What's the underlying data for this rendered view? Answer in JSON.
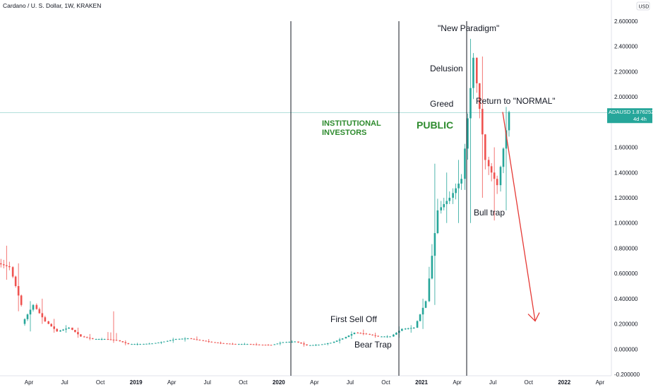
{
  "header": {
    "symbol_title": "Cardano / U. S. Dollar, 1W, KRAKEN",
    "currency_label": "USD"
  },
  "price_tag": {
    "symbol": "ADAUSD",
    "price": "1.876252",
    "countdown": "4d 4h",
    "color": "#26a69a"
  },
  "colors": {
    "up": "#26a69a",
    "down": "#ef5350",
    "annotation_green": "#2e8b2e",
    "arrow": "#e53935"
  },
  "annotations": {
    "new_paradigm": "\"New Paradigm\"",
    "delusion": "Delusion",
    "greed": "Greed",
    "return_normal": "Return to \"NORMAL\"",
    "institutional_line1": "INSTITUTIONAL",
    "institutional_line2": "INVESTORS",
    "public": "PUBLIC",
    "bull_trap": "Bull trap",
    "first_sell_off": "First Sell Off",
    "bear_trap": "Bear Trap"
  },
  "chart_data": {
    "type": "candlestick",
    "title": "Cardano / U. S. Dollar, 1W, KRAKEN",
    "y_axis": {
      "ticks": [
        "2.600000",
        "2.400000",
        "2.200000",
        "2.000000",
        "1.600000",
        "1.400000",
        "1.200000",
        "1.000000",
        "0.800000",
        "0.600000",
        "0.400000",
        "0.200000",
        "0.000000",
        "-0.200000"
      ],
      "tick_values": [
        2.6,
        2.4,
        2.2,
        2.0,
        1.6,
        1.4,
        1.2,
        1.0,
        0.8,
        0.6,
        0.4,
        0.2,
        0.0,
        -0.2
      ],
      "range": [
        -0.2,
        2.6
      ]
    },
    "x_axis": {
      "labels": [
        {
          "text": "Apr",
          "date": "2018-04",
          "year": false
        },
        {
          "text": "Jul",
          "date": "2018-07",
          "year": false
        },
        {
          "text": "Oct",
          "date": "2018-10",
          "year": false
        },
        {
          "text": "2019",
          "date": "2019-01",
          "year": true
        },
        {
          "text": "Apr",
          "date": "2019-04",
          "year": false
        },
        {
          "text": "Jul",
          "date": "2019-07",
          "year": false
        },
        {
          "text": "Oct",
          "date": "2019-10",
          "year": false
        },
        {
          "text": "2020",
          "date": "2020-01",
          "year": true
        },
        {
          "text": "Apr",
          "date": "2020-04",
          "year": false
        },
        {
          "text": "Jul",
          "date": "2020-07",
          "year": false
        },
        {
          "text": "Oct",
          "date": "2020-10",
          "year": false
        },
        {
          "text": "2021",
          "date": "2021-01",
          "year": true
        },
        {
          "text": "Apr",
          "date": "2021-04",
          "year": false
        },
        {
          "text": "Jul",
          "date": "2021-07",
          "year": false
        },
        {
          "text": "Oct",
          "date": "2021-10",
          "year": false
        },
        {
          "text": "2022",
          "date": "2022-01",
          "year": true
        },
        {
          "text": "Apr",
          "date": "2022-04",
          "year": false
        }
      ]
    },
    "current_price": 1.876252,
    "vertical_markers": [
      "2020-02",
      "2020-12",
      "2021-05"
    ],
    "projection": {
      "from_date": "2021-08",
      "from_value": 1.88,
      "to_date": "2021-11",
      "to_value": 0.2
    },
    "ohlc": [
      {
        "date": "2018-02",
        "open": 0.68,
        "high": 0.82,
        "low": 0.55,
        "close": 0.65
      },
      {
        "date": "2018-03",
        "open": 0.65,
        "high": 0.68,
        "low": 0.3,
        "close": 0.35
      },
      {
        "date": "2018-04",
        "open": 0.2,
        "high": 0.38,
        "low": 0.14,
        "close": 0.35
      },
      {
        "date": "2018-05",
        "open": 0.35,
        "high": 0.4,
        "low": 0.2,
        "close": 0.22
      },
      {
        "date": "2018-06",
        "open": 0.22,
        "high": 0.24,
        "low": 0.13,
        "close": 0.14
      },
      {
        "date": "2018-07",
        "open": 0.14,
        "high": 0.19,
        "low": 0.13,
        "close": 0.17
      },
      {
        "date": "2018-08",
        "open": 0.17,
        "high": 0.17,
        "low": 0.09,
        "close": 0.1
      },
      {
        "date": "2018-09",
        "open": 0.1,
        "high": 0.12,
        "low": 0.07,
        "close": 0.08
      },
      {
        "date": "2018-10",
        "open": 0.08,
        "high": 0.09,
        "low": 0.07,
        "close": 0.08
      },
      {
        "date": "2018-11",
        "open": 0.08,
        "high": 0.3,
        "low": 0.05,
        "close": 0.07
      },
      {
        "date": "2018-12",
        "open": 0.07,
        "high": 0.07,
        "low": 0.03,
        "close": 0.04
      },
      {
        "date": "2019-01",
        "open": 0.04,
        "high": 0.05,
        "low": 0.03,
        "close": 0.04
      },
      {
        "date": "2019-02",
        "open": 0.04,
        "high": 0.05,
        "low": 0.04,
        "close": 0.045
      },
      {
        "date": "2019-03",
        "open": 0.045,
        "high": 0.06,
        "low": 0.04,
        "close": 0.06
      },
      {
        "date": "2019-04",
        "open": 0.06,
        "high": 0.09,
        "low": 0.05,
        "close": 0.08
      },
      {
        "date": "2019-05",
        "open": 0.08,
        "high": 0.095,
        "low": 0.06,
        "close": 0.085
      },
      {
        "date": "2019-06",
        "open": 0.085,
        "high": 0.1,
        "low": 0.07,
        "close": 0.07
      },
      {
        "date": "2019-07",
        "open": 0.07,
        "high": 0.08,
        "low": 0.05,
        "close": 0.055
      },
      {
        "date": "2019-08",
        "open": 0.055,
        "high": 0.06,
        "low": 0.04,
        "close": 0.045
      },
      {
        "date": "2019-09",
        "open": 0.045,
        "high": 0.05,
        "low": 0.035,
        "close": 0.04
      },
      {
        "date": "2019-10",
        "open": 0.04,
        "high": 0.05,
        "low": 0.035,
        "close": 0.04
      },
      {
        "date": "2019-11",
        "open": 0.04,
        "high": 0.05,
        "low": 0.03,
        "close": 0.035
      },
      {
        "date": "2019-12",
        "open": 0.035,
        "high": 0.04,
        "low": 0.03,
        "close": 0.033
      },
      {
        "date": "2020-01",
        "open": 0.033,
        "high": 0.06,
        "low": 0.03,
        "close": 0.055
      },
      {
        "date": "2020-02",
        "open": 0.055,
        "high": 0.07,
        "low": 0.05,
        "close": 0.06
      },
      {
        "date": "2020-03",
        "open": 0.06,
        "high": 0.06,
        "low": 0.02,
        "close": 0.03
      },
      {
        "date": "2020-04",
        "open": 0.03,
        "high": 0.04,
        "low": 0.025,
        "close": 0.035
      },
      {
        "date": "2020-05",
        "open": 0.035,
        "high": 0.05,
        "low": 0.03,
        "close": 0.05
      },
      {
        "date": "2020-06",
        "open": 0.05,
        "high": 0.09,
        "low": 0.045,
        "close": 0.085
      },
      {
        "date": "2020-07",
        "open": 0.085,
        "high": 0.14,
        "low": 0.08,
        "close": 0.13
      },
      {
        "date": "2020-08",
        "open": 0.13,
        "high": 0.155,
        "low": 0.11,
        "close": 0.12
      },
      {
        "date": "2020-09",
        "open": 0.12,
        "high": 0.13,
        "low": 0.09,
        "close": 0.1
      },
      {
        "date": "2020-10",
        "open": 0.1,
        "high": 0.11,
        "low": 0.09,
        "close": 0.1
      },
      {
        "date": "2020-11",
        "open": 0.1,
        "high": 0.18,
        "low": 0.09,
        "close": 0.16
      },
      {
        "date": "2020-12",
        "open": 0.16,
        "high": 0.19,
        "low": 0.13,
        "close": 0.17
      },
      {
        "date": "2021-01",
        "open": 0.17,
        "high": 0.4,
        "low": 0.16,
        "close": 0.38
      },
      {
        "date": "2021-02",
        "open": 0.38,
        "high": 1.47,
        "low": 0.35,
        "close": 1.1
      },
      {
        "date": "2021-03",
        "open": 1.1,
        "high": 1.4,
        "low": 1.0,
        "close": 1.2
      },
      {
        "date": "2021-04",
        "open": 1.2,
        "high": 1.5,
        "low": 1.0,
        "close": 1.35
      },
      {
        "date": "2021-05",
        "open": 1.35,
        "high": 2.46,
        "low": 1.0,
        "close": 2.31
      },
      {
        "date": "2021-06",
        "open": 2.31,
        "high": 2.32,
        "low": 1.2,
        "close": 1.5
      },
      {
        "date": "2021-07",
        "open": 1.5,
        "high": 1.6,
        "low": 1.02,
        "close": 1.3
      },
      {
        "date": "2021-08",
        "open": 1.3,
        "high": 1.92,
        "low": 1.1,
        "close": 1.88
      }
    ]
  }
}
